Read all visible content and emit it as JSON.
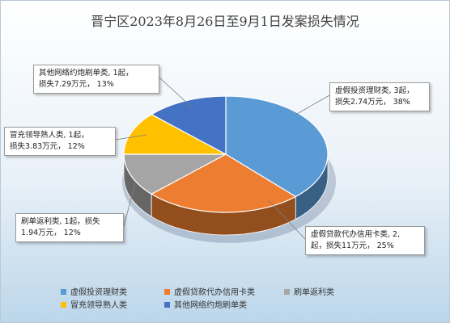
{
  "chart_data": {
    "type": "pie",
    "title": "晋宁区2023年8月26日至9月1日发案损失情况",
    "categories": [
      "虚假投资理财类",
      "虚假贷款代办信用卡类",
      "刷单返利类",
      "冒充领导熟人类",
      "其他网络约炮刷单类"
    ],
    "values": [
      38,
      25,
      12,
      12,
      13
    ],
    "colors": [
      "#5b9bd5",
      "#ed7d31",
      "#a5a5a5",
      "#ffc000",
      "#4472c4"
    ],
    "data_labels": [
      [
        "虚假投资理财类, 3起，",
        "损失2.74万元， 38%"
      ],
      [
        "虚假贷款代办信用卡类, 2,",
        "起，损失11万元， 25%"
      ],
      [
        "刷单返利类, 1起，损失",
        "1.94万元， 12%"
      ],
      [
        "冒充领导熟人类, 1起，",
        "损失3.83万元， 12%"
      ],
      [
        "其他网络约炮刷单类, 1起，",
        "损失7.29万元， 13%"
      ]
    ],
    "legend_position": "bottom"
  }
}
